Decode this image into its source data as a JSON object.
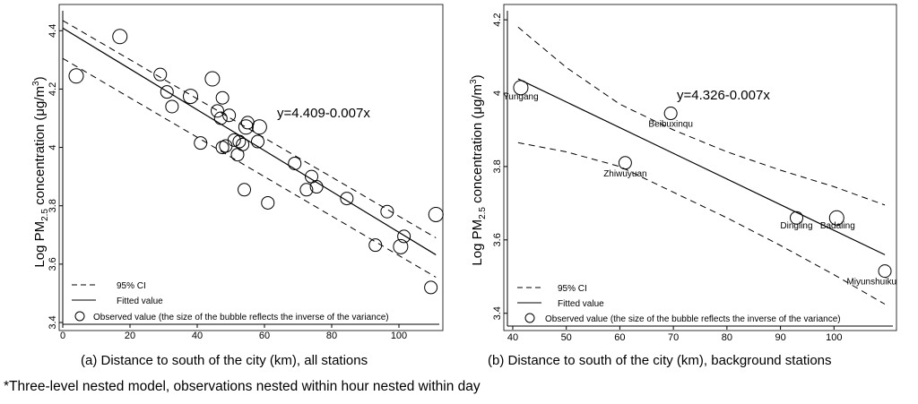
{
  "footnote": "*Three-level nested model, observations nested within hour nested within day",
  "chart_data": [
    {
      "type": "scatter",
      "panel": "a",
      "caption": "(a) Distance to south of the city (km), all stations",
      "ylabel_pre": "Log PM",
      "ylabel_sub": "2.5",
      "ylabel_post": " concentration (μg/m",
      "ylabel_sup": "3",
      "ylabel_end": ")",
      "xlim": [
        0,
        112
      ],
      "ylim": [
        3.4,
        4.45
      ],
      "xticks": [
        0,
        20,
        40,
        60,
        80,
        100
      ],
      "yticks": [
        3.4,
        3.6,
        3.8,
        4.0,
        4.2,
        4.4
      ],
      "ytick_labels": [
        "3.4",
        "3.6",
        "3.8",
        "4",
        "4.2",
        "4.4"
      ],
      "equation": "y=4.409-0.007x",
      "fit": {
        "intercept": 4.409,
        "slope": -0.007,
        "x_range": [
          0,
          111
        ]
      },
      "ci_upper": [
        [
          0,
          4.435
        ],
        [
          111,
          3.69
        ]
      ],
      "ci_lower": [
        [
          0,
          4.305
        ],
        [
          111,
          3.555
        ]
      ],
      "points": [
        {
          "x": 4,
          "y": 4.245
        },
        {
          "x": 17,
          "y": 4.38
        },
        {
          "x": 29,
          "y": 4.25
        },
        {
          "x": 31,
          "y": 4.19
        },
        {
          "x": 32.5,
          "y": 4.14
        },
        {
          "x": 38,
          "y": 4.175
        },
        {
          "x": 41,
          "y": 4.015
        },
        {
          "x": 44.5,
          "y": 4.235
        },
        {
          "x": 46,
          "y": 4.125
        },
        {
          "x": 47,
          "y": 4.1
        },
        {
          "x": 47.5,
          "y": 4.17
        },
        {
          "x": 47.5,
          "y": 4.0
        },
        {
          "x": 48.5,
          "y": 4.005
        },
        {
          "x": 49.5,
          "y": 4.11
        },
        {
          "x": 51,
          "y": 4.025
        },
        {
          "x": 52,
          "y": 3.975
        },
        {
          "x": 52.5,
          "y": 4.02
        },
        {
          "x": 53.5,
          "y": 4.01
        },
        {
          "x": 54,
          "y": 3.855
        },
        {
          "x": 54.5,
          "y": 4.07
        },
        {
          "x": 55,
          "y": 4.085
        },
        {
          "x": 58,
          "y": 4.02
        },
        {
          "x": 58.5,
          "y": 4.07
        },
        {
          "x": 61,
          "y": 3.81
        },
        {
          "x": 69,
          "y": 3.945
        },
        {
          "x": 72.5,
          "y": 3.855
        },
        {
          "x": 74,
          "y": 3.9
        },
        {
          "x": 75.5,
          "y": 3.865
        },
        {
          "x": 84.5,
          "y": 3.825
        },
        {
          "x": 93,
          "y": 3.665
        },
        {
          "x": 96.5,
          "y": 3.78
        },
        {
          "x": 100.5,
          "y": 3.66
        },
        {
          "x": 101.5,
          "y": 3.695
        },
        {
          "x": 109.5,
          "y": 3.52
        },
        {
          "x": 111,
          "y": 3.77
        }
      ],
      "legend": [
        "95% CI",
        "Fitted value",
        "Observed value (the size of the bubble reflects the inverse of the variance)"
      ]
    },
    {
      "type": "scatter",
      "panel": "b",
      "caption": "(b) Distance to south of the city (km), background stations",
      "ylabel_pre": "Log PM",
      "ylabel_sub": "2.5",
      "ylabel_post": " concentration (μg/m",
      "ylabel_sup": "3",
      "ylabel_end": ")",
      "xlim": [
        39,
        111
      ],
      "ylim": [
        3.37,
        4.21
      ],
      "xticks": [
        40,
        50,
        60,
        70,
        80,
        90,
        100
      ],
      "yticks": [
        3.4,
        3.6,
        3.8,
        4.0,
        4.2
      ],
      "ytick_labels": [
        "3.4",
        "3.6",
        "3.8",
        "4",
        "4.2"
      ],
      "equation": "y=4.326-0.007x",
      "fit": {
        "intercept": 4.326,
        "slope": -0.007,
        "x_range": [
          41,
          109.5
        ]
      },
      "ci_upper": [
        [
          41,
          4.18
        ],
        [
          50,
          4.07
        ],
        [
          60,
          3.97
        ],
        [
          70,
          3.9
        ],
        [
          80,
          3.84
        ],
        [
          90,
          3.79
        ],
        [
          100,
          3.745
        ],
        [
          109.5,
          3.695
        ]
      ],
      "ci_lower": [
        [
          41,
          3.865
        ],
        [
          50,
          3.84
        ],
        [
          60,
          3.8
        ],
        [
          70,
          3.73
        ],
        [
          80,
          3.66
        ],
        [
          90,
          3.585
        ],
        [
          100,
          3.505
        ],
        [
          109.5,
          3.425
        ]
      ],
      "points": [
        {
          "x": 41.5,
          "y": 4.015,
          "label": "Yungang"
        },
        {
          "x": 61,
          "y": 3.81,
          "label": "Zhiwuyuan"
        },
        {
          "x": 69.5,
          "y": 3.945,
          "label": "Beibuxinqu"
        },
        {
          "x": 93,
          "y": 3.66,
          "label": "Dingling"
        },
        {
          "x": 100.5,
          "y": 3.66,
          "label": "Badaling"
        },
        {
          "x": 109.5,
          "y": 3.515,
          "label": "Miyunshuiku"
        }
      ],
      "legend": [
        "95% CI",
        "Fitted value",
        "Observed value (the size of the bubble reflects the inverse of the variance)"
      ]
    }
  ]
}
